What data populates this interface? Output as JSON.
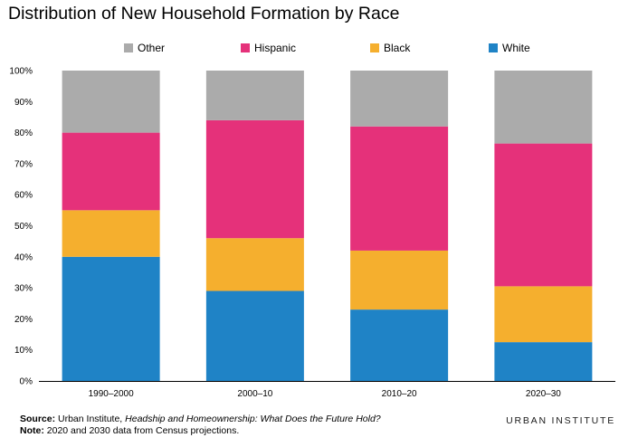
{
  "chart_data": {
    "type": "bar",
    "stacked": true,
    "title": "Distribution of New Household Formation by Race",
    "categories": [
      "1990–2000",
      "2000–10",
      "2010–20",
      "2020–30"
    ],
    "series": [
      {
        "name": "White",
        "color": "#1f83c6",
        "values": [
          40,
          29,
          23,
          12.5
        ]
      },
      {
        "name": "Black",
        "color": "#f5af2e",
        "values": [
          15,
          17,
          19,
          18
        ]
      },
      {
        "name": "Hispanic",
        "color": "#e5317a",
        "values": [
          25,
          38,
          40,
          46
        ]
      },
      {
        "name": "Other",
        "color": "#ababab",
        "values": [
          20,
          16,
          18,
          23.5
        ]
      }
    ],
    "ylim": [
      0,
      100
    ],
    "yticks": [
      "0%",
      "10%",
      "20%",
      "30%",
      "40%",
      "50%",
      "60%",
      "70%",
      "80%",
      "90%",
      "100%"
    ],
    "legend_order": [
      "Other",
      "Hispanic",
      "Black",
      "White"
    ],
    "legend_position": "top",
    "grid": false
  },
  "footer": {
    "source_label": "Source:",
    "source_text_1": " Urban Institute, ",
    "source_title": "Headship and Homeownership: What Does the Future Hold?",
    "note_label": "Note:",
    "note_text": " 2020 and 2030 data from Census projections."
  },
  "brand": "URBAN INSTITUTE"
}
